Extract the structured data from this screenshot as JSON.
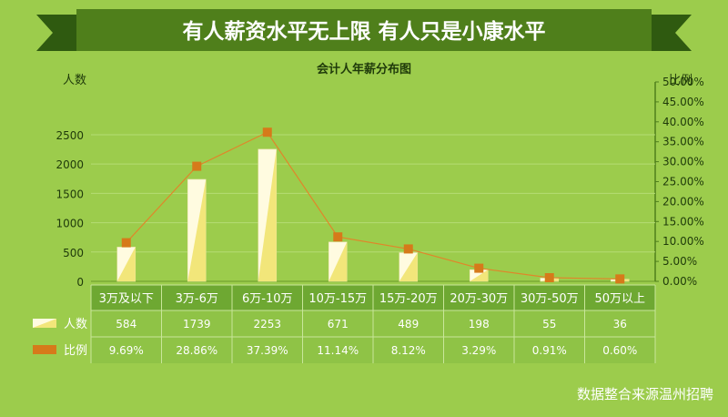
{
  "banner": {
    "title": "有人薪资水平无上限 有人只是小康水平"
  },
  "footer": {
    "source": "数据整合来源温州招聘"
  },
  "colors": {
    "background": "#9ccc4c",
    "banner": "#4f7f1b",
    "banner_dark": "#2f5a10",
    "bar_light": "#fffbe0",
    "bar_yellow": "#f2e67a",
    "line": "#e0862a",
    "marker": "#d67a1a",
    "table_header": "#6ea832",
    "table_row": "#8fc346"
  },
  "chart_data": {
    "type": "bar",
    "title": "会计人年薪分布图",
    "ylabel": "人数",
    "y2label": "比例",
    "categories": [
      "3万及以下",
      "3万-6万",
      "6万-10万",
      "10万-15万",
      "15万-20万",
      "20万-30万",
      "30万-50万",
      "50万以上"
    ],
    "series": [
      {
        "name": "人数",
        "kind": "bar",
        "axis": "left",
        "values": [
          584,
          1739,
          2253,
          671,
          489,
          198,
          55,
          36
        ],
        "labels": [
          "584",
          "1739",
          "2253",
          "671",
          "489",
          "198",
          "55",
          "36"
        ]
      },
      {
        "name": "比例",
        "kind": "line",
        "axis": "right",
        "values": [
          9.69,
          28.86,
          37.39,
          11.14,
          8.12,
          3.29,
          0.91,
          0.6
        ],
        "labels": [
          "9.69%",
          "28.86%",
          "37.39%",
          "11.14%",
          "8.12%",
          "3.29%",
          "0.91%",
          "0.60%"
        ]
      }
    ],
    "ylim": [
      0,
      3400
    ],
    "y_ticks": [
      0,
      500,
      1000,
      1500,
      2000,
      2500
    ],
    "y2lim": [
      0,
      50
    ],
    "y2_ticks": [
      "0.00%",
      "5.00%",
      "10.00%",
      "15.00%",
      "20.00%",
      "25.00%",
      "30.00%",
      "35.00%",
      "40.00%",
      "45.00%",
      "50.00%"
    ],
    "grid": true,
    "legend": "data-table-left"
  }
}
